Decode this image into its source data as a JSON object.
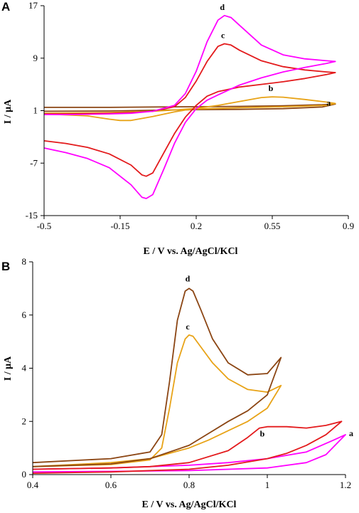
{
  "chart_data": [
    {
      "type": "line",
      "panel_label": "A",
      "xlabel": "E / V vs. Ag/AgCl/KCl",
      "ylabel": "I / μA",
      "xlim": [
        -0.5,
        0.9
      ],
      "ylim": [
        -15,
        17
      ],
      "xticks": [
        -0.5,
        -0.15,
        0.2,
        0.55,
        0.9
      ],
      "xtick_labels": [
        "-0.5",
        "-0.15",
        "0.2",
        "0.55",
        "0.9"
      ],
      "yticks": [
        -15,
        -7,
        1,
        9,
        17
      ],
      "ytick_labels": [
        "-15",
        "-7",
        "1",
        "9",
        "17"
      ],
      "grid": false,
      "legend": "none",
      "series": [
        {
          "label": "a",
          "color": "#8B4513",
          "x": [
            -0.5,
            -0.2,
            0.0,
            0.2,
            0.4,
            0.6,
            0.78,
            0.84,
            0.78,
            0.6,
            0.4,
            0.2,
            0.0,
            -0.2,
            -0.5
          ],
          "y": [
            1.5,
            1.5,
            1.55,
            1.6,
            1.65,
            1.75,
            1.9,
            2.0,
            1.55,
            1.3,
            1.2,
            1.15,
            1.05,
            0.95,
            0.9
          ]
        },
        {
          "label": "b",
          "color": "#E8A317",
          "x": [
            -0.5,
            -0.3,
            -0.2,
            -0.1,
            0.0,
            0.1,
            0.2,
            0.3,
            0.4,
            0.5,
            0.55,
            0.6,
            0.7,
            0.8,
            0.84,
            0.8,
            0.6,
            0.4,
            0.3,
            0.2,
            0.15,
            0.1,
            0.0,
            -0.1,
            -0.15,
            -0.2,
            -0.3,
            -0.5
          ],
          "y": [
            0.6,
            0.65,
            0.7,
            0.8,
            0.9,
            1.1,
            1.35,
            1.8,
            2.4,
            3.0,
            3.1,
            3.05,
            2.7,
            2.3,
            2.1,
            1.8,
            1.6,
            1.45,
            1.35,
            1.25,
            1.1,
            0.8,
            0.1,
            -0.5,
            -0.5,
            -0.3,
            0.2,
            0.5
          ]
        },
        {
          "label": "c",
          "color": "#E31A1C",
          "x": [
            -0.5,
            -0.4,
            -0.3,
            -0.2,
            -0.1,
            0.0,
            0.1,
            0.15,
            0.2,
            0.25,
            0.3,
            0.33,
            0.36,
            0.4,
            0.5,
            0.6,
            0.7,
            0.8,
            0.84,
            0.8,
            0.7,
            0.6,
            0.5,
            0.4,
            0.3,
            0.25,
            0.2,
            0.15,
            0.1,
            0.05,
            0.0,
            -0.03,
            -0.05,
            -0.1,
            -0.2,
            -0.3,
            -0.4,
            -0.5
          ],
          "y": [
            0.5,
            0.5,
            0.55,
            0.6,
            0.7,
            0.9,
            1.6,
            3.0,
            5.5,
            8.5,
            10.8,
            11.2,
            11.0,
            10.2,
            8.6,
            7.7,
            7.2,
            6.9,
            6.8,
            6.5,
            5.9,
            5.4,
            5.0,
            4.6,
            3.9,
            3.2,
            1.8,
            0.0,
            -2.5,
            -5.5,
            -8.5,
            -9.0,
            -8.8,
            -7.3,
            -5.6,
            -4.6,
            -4.0,
            -3.6
          ]
        },
        {
          "label": "d",
          "color": "#FF00FF",
          "x": [
            -0.5,
            -0.4,
            -0.3,
            -0.2,
            -0.1,
            0.0,
            0.1,
            0.15,
            0.2,
            0.25,
            0.3,
            0.33,
            0.36,
            0.4,
            0.5,
            0.6,
            0.7,
            0.8,
            0.84,
            0.8,
            0.7,
            0.6,
            0.5,
            0.4,
            0.3,
            0.25,
            0.2,
            0.15,
            0.1,
            0.05,
            0.0,
            -0.03,
            -0.05,
            -0.1,
            -0.2,
            -0.3,
            -0.4,
            -0.5
          ],
          "y": [
            0.4,
            0.4,
            0.45,
            0.5,
            0.6,
            0.9,
            1.8,
            3.6,
            7.0,
            11.5,
            14.8,
            15.5,
            15.2,
            14.0,
            11.0,
            9.5,
            8.9,
            8.6,
            8.5,
            8.2,
            7.6,
            6.9,
            6.0,
            4.9,
            3.4,
            2.6,
            1.3,
            -0.8,
            -4.0,
            -8.0,
            -11.8,
            -12.4,
            -12.2,
            -10.3,
            -7.7,
            -6.3,
            -5.4,
            -4.7
          ]
        }
      ]
    },
    {
      "type": "line",
      "panel_label": "B",
      "xlabel": "E / V vs. Ag/AgCl/KCl",
      "ylabel": "I / μA",
      "xlim": [
        0.4,
        1.2
      ],
      "ylim": [
        0,
        8
      ],
      "xticks": [
        0.4,
        0.6,
        0.8,
        1.0,
        1.2
      ],
      "xtick_labels": [
        "0.4",
        "0.6",
        "0.8",
        "1",
        "1.2"
      ],
      "yticks": [
        0,
        2,
        4,
        6,
        8
      ],
      "ytick_labels": [
        "0",
        "2",
        "4",
        "6",
        "8"
      ],
      "grid": false,
      "legend": "none",
      "series": [
        {
          "label": "a",
          "color": "#FF00FF",
          "x": [
            0.4,
            0.6,
            0.8,
            1.0,
            1.1,
            1.15,
            1.2,
            1.17,
            1.1,
            1.0,
            0.9,
            0.8,
            0.6,
            0.4
          ],
          "y": [
            0.1,
            0.12,
            0.15,
            0.25,
            0.45,
            0.75,
            1.5,
            1.3,
            0.85,
            0.6,
            0.45,
            0.35,
            0.25,
            0.2
          ]
        },
        {
          "label": "b",
          "color": "#E31A1C",
          "x": [
            0.4,
            0.6,
            0.7,
            0.8,
            0.9,
            0.95,
            0.98,
            1.0,
            1.05,
            1.1,
            1.15,
            1.19,
            1.15,
            1.1,
            1.05,
            1.0,
            0.9,
            0.8,
            0.6,
            0.4
          ],
          "y": [
            0.2,
            0.25,
            0.3,
            0.45,
            0.9,
            1.4,
            1.75,
            1.8,
            1.8,
            1.75,
            1.85,
            2.0,
            1.5,
            1.1,
            0.8,
            0.6,
            0.35,
            0.2,
            0.1,
            0.05
          ]
        },
        {
          "label": "c",
          "color": "#E8A317",
          "x": [
            0.4,
            0.6,
            0.7,
            0.73,
            0.75,
            0.77,
            0.79,
            0.8,
            0.81,
            0.83,
            0.86,
            0.9,
            0.95,
            1.0,
            1.035,
            1.0,
            0.95,
            0.9,
            0.85,
            0.8,
            0.7,
            0.6,
            0.4
          ],
          "y": [
            0.3,
            0.38,
            0.55,
            1.0,
            2.5,
            4.2,
            5.1,
            5.25,
            5.2,
            4.8,
            4.2,
            3.6,
            3.2,
            3.1,
            3.35,
            2.5,
            2.0,
            1.65,
            1.3,
            1.0,
            0.6,
            0.45,
            0.3
          ]
        },
        {
          "label": "d",
          "color": "#8B4513",
          "x": [
            0.4,
            0.6,
            0.7,
            0.73,
            0.75,
            0.77,
            0.79,
            0.8,
            0.81,
            0.83,
            0.86,
            0.9,
            0.95,
            1.0,
            1.035,
            1.0,
            0.95,
            0.9,
            0.85,
            0.8,
            0.7,
            0.6,
            0.4
          ],
          "y": [
            0.45,
            0.6,
            0.85,
            1.5,
            3.5,
            5.8,
            6.9,
            7.0,
            6.9,
            6.2,
            5.1,
            4.2,
            3.75,
            3.8,
            4.4,
            3.0,
            2.4,
            2.0,
            1.55,
            1.1,
            0.6,
            0.4,
            0.3
          ]
        }
      ]
    }
  ]
}
